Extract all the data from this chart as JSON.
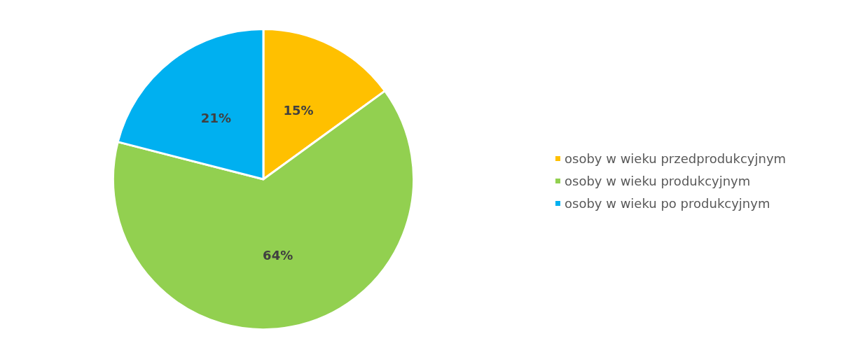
{
  "chart_data": {
    "type": "pie",
    "categories": [
      "osoby w wieku przedprodukcyjnym",
      "osoby w wieku produkcyjnym",
      "osoby w wieku po produkcyjnym"
    ],
    "values": [
      15,
      64,
      21
    ],
    "value_labels": [
      "15%",
      "64%",
      "21%"
    ],
    "colors": [
      "#ffc000",
      "#92d050",
      "#00b0f0"
    ],
    "legend": "right"
  }
}
